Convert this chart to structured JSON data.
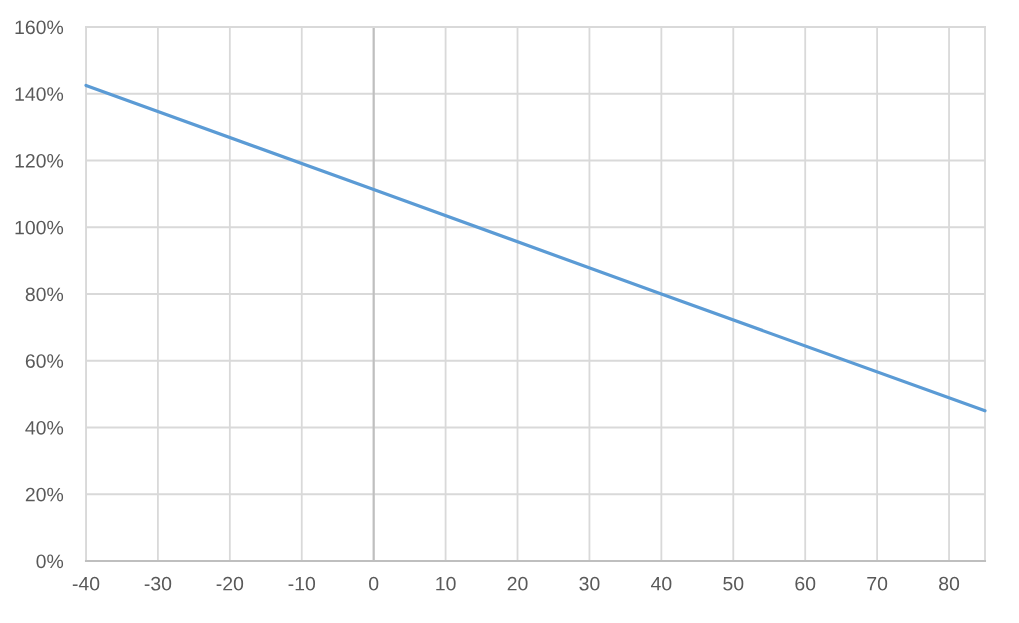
{
  "chart_data": {
    "type": "line",
    "x": [
      -40,
      0,
      40,
      85
    ],
    "series": [
      {
        "color": "#5b9bd5",
        "values": [
          142.5,
          111.3,
          80,
          45
        ]
      }
    ],
    "xlim": [
      -40,
      85
    ],
    "xticks": [
      -40,
      -30,
      -20,
      -10,
      0,
      10,
      20,
      30,
      40,
      50,
      60,
      70,
      80
    ],
    "ylim": [
      0,
      160
    ],
    "yticks": [
      {
        "value": 0,
        "label": "0%"
      },
      {
        "value": 20,
        "label": "20%"
      },
      {
        "value": 40,
        "label": "40%"
      },
      {
        "value": 60,
        "label": "60%"
      },
      {
        "value": 80,
        "label": "80%"
      },
      {
        "value": 100,
        "label": "100%"
      },
      {
        "value": 120,
        "label": "120%"
      },
      {
        "value": 140,
        "label": "140%"
      },
      {
        "value": 160,
        "label": "160%"
      }
    ],
    "ref_lines": [
      {
        "axis": "x",
        "value": 0,
        "color": "#bfbfbf"
      }
    ],
    "grid": true,
    "marker": "none",
    "line_style": "solid"
  }
}
